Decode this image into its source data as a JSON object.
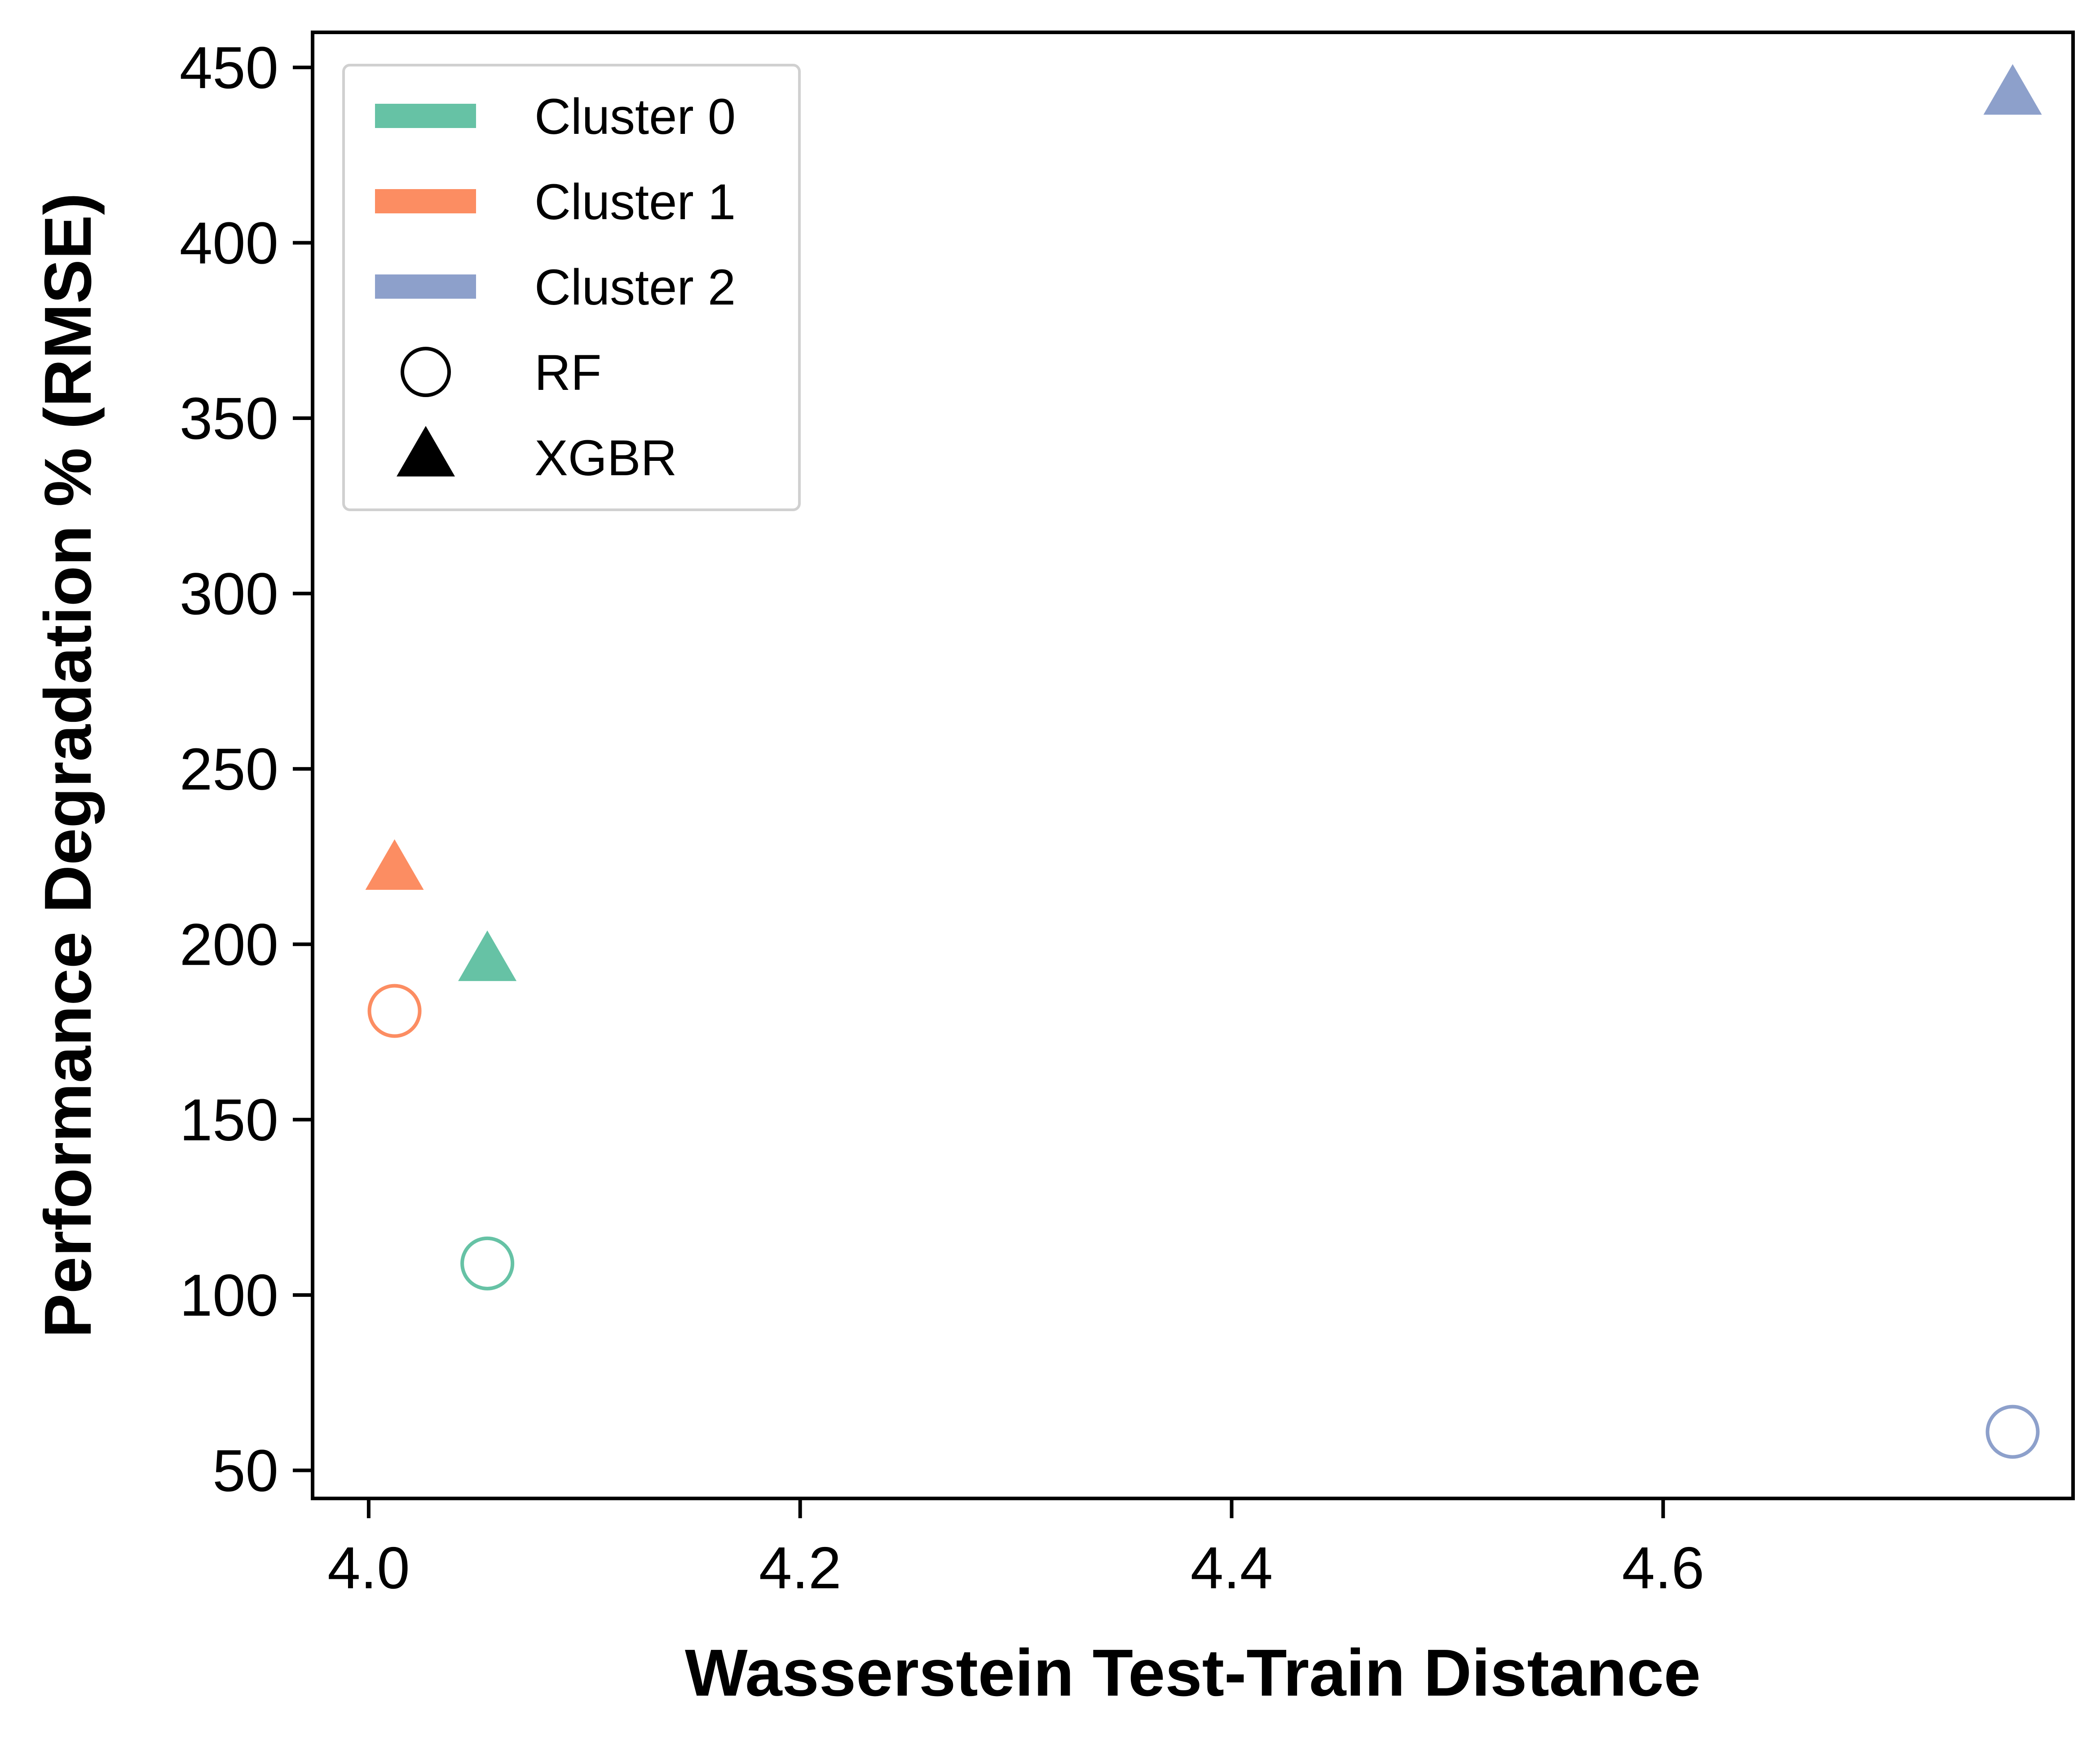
{
  "chart_data": {
    "type": "scatter",
    "xlabel": "Wasserstein Test-Train Distance",
    "ylabel": "Performance Degradation % (RMSE)",
    "xlim": [
      3.974,
      4.79
    ],
    "ylim": [
      42,
      460
    ],
    "xticks": [
      4.0,
      4.2,
      4.4,
      4.6
    ],
    "xtick_labels": [
      "4.0",
      "4.2",
      "4.4",
      "4.6"
    ],
    "yticks": [
      50,
      100,
      150,
      200,
      250,
      300,
      350,
      400,
      450
    ],
    "ytick_labels": [
      "50",
      "100",
      "150",
      "200",
      "250",
      "300",
      "350",
      "400",
      "450"
    ],
    "grid": false,
    "legend_position": "top-left",
    "colors": {
      "Cluster 0": "#66c2a5",
      "Cluster 1": "#fc8d62",
      "Cluster 2": "#8da0cb"
    },
    "legend": {
      "clusters": [
        {
          "label": "Cluster 0",
          "color": "#66c2a5"
        },
        {
          "label": "Cluster 1",
          "color": "#fc8d62"
        },
        {
          "label": "Cluster 2",
          "color": "#8da0cb"
        }
      ],
      "markers": [
        {
          "label": "RF",
          "marker": "open-circle"
        },
        {
          "label": "XGBR",
          "marker": "filled-triangle"
        }
      ]
    },
    "points": [
      {
        "cluster": "Cluster 0",
        "model": "RF",
        "x": 4.055,
        "y": 109
      },
      {
        "cluster": "Cluster 0",
        "model": "XGBR",
        "x": 4.055,
        "y": 195
      },
      {
        "cluster": "Cluster 1",
        "model": "RF",
        "x": 4.012,
        "y": 181
      },
      {
        "cluster": "Cluster 1",
        "model": "XGBR",
        "x": 4.012,
        "y": 221
      },
      {
        "cluster": "Cluster 2",
        "model": "RF",
        "x": 4.762,
        "y": 61
      },
      {
        "cluster": "Cluster 2",
        "model": "XGBR",
        "x": 4.762,
        "y": 442
      }
    ]
  }
}
